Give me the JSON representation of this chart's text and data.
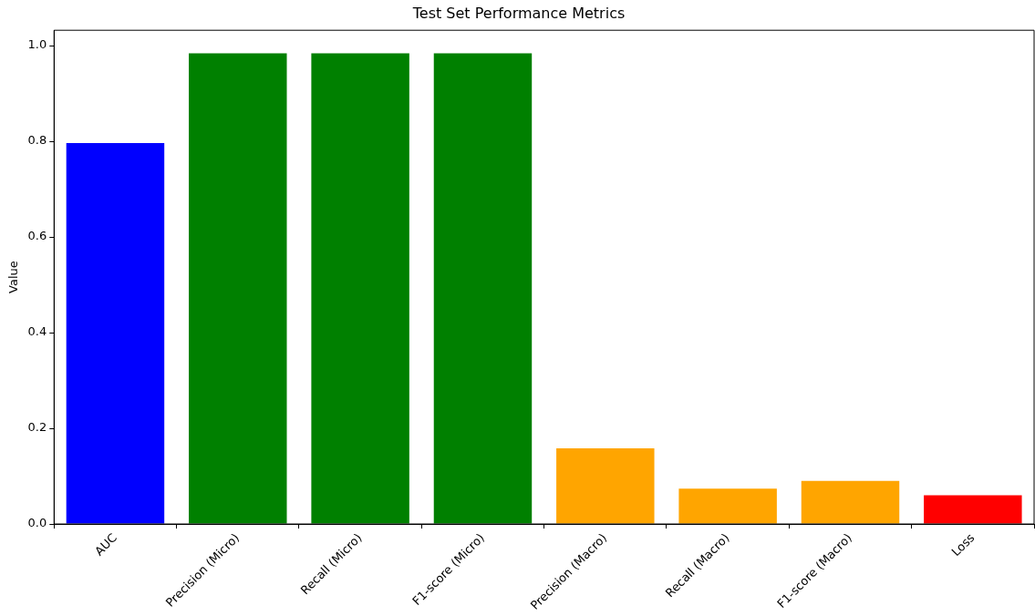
{
  "chart_data": {
    "type": "bar",
    "title": "Test Set Performance Metrics",
    "ylabel": "Value",
    "categories": [
      "AUC",
      "Precision (Micro)",
      "Recall (Micro)",
      "F1-score (Micro)",
      "Precision (Macro)",
      "Recall (Macro)",
      "F1-score (Macro)",
      "Loss"
    ],
    "values": [
      0.796,
      0.984,
      0.984,
      0.984,
      0.158,
      0.074,
      0.09,
      0.06
    ],
    "colors": [
      "#0000ff",
      "#008000",
      "#008000",
      "#008000",
      "#ffa500",
      "#ffa500",
      "#ffa500",
      "#ff0000"
    ],
    "ylim": [
      0,
      1.032
    ],
    "yticks": [
      {
        "value": 0,
        "label": "0.0"
      },
      {
        "value": 0.2,
        "label": "0.2"
      },
      {
        "value": 0.4,
        "label": "0.4"
      },
      {
        "value": 0.6,
        "label": "0.6"
      },
      {
        "value": 0.8,
        "label": "0.8"
      },
      {
        "value": 1,
        "label": "1.0"
      }
    ]
  }
}
